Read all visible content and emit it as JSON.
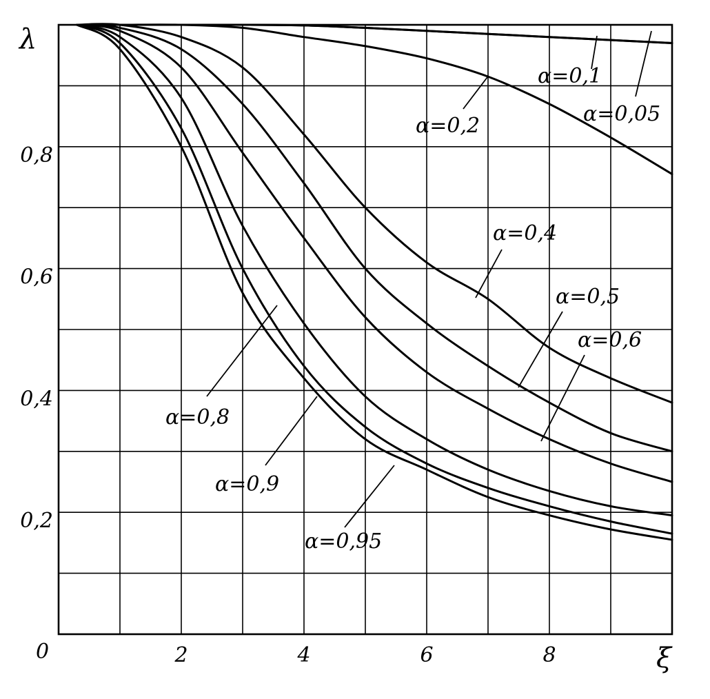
{
  "chart_data": {
    "type": "line",
    "xlabel": "ξ",
    "ylabel": "λ",
    "xlim": [
      0,
      10
    ],
    "ylim": [
      0,
      1
    ],
    "grid": true,
    "x_tick_step": 1,
    "y_tick_step": 0.1,
    "x_tick_labels": [
      {
        "value": 2,
        "label": "2"
      },
      {
        "value": 4,
        "label": "4"
      },
      {
        "value": 6,
        "label": "6"
      },
      {
        "value": 8,
        "label": "8"
      }
    ],
    "y_tick_labels": [
      {
        "value": 0.2,
        "label": "0,2"
      },
      {
        "value": 0.4,
        "label": "0,4"
      },
      {
        "value": 0.6,
        "label": "0,6"
      },
      {
        "value": 0.8,
        "label": "0,8"
      }
    ],
    "origin_label": "0",
    "series": [
      {
        "name": "α=0,05",
        "x": [
          0.3,
          1,
          2,
          3,
          4,
          5,
          6,
          7,
          8,
          9,
          10
        ],
        "y": [
          1,
          1,
          1,
          1,
          0.999,
          0.995,
          0.99,
          0.985,
          0.98,
          0.975,
          0.97
        ]
      },
      {
        "name": "α=0,1",
        "x": [
          0.3,
          1,
          2,
          3,
          4,
          5,
          6,
          7,
          8,
          9,
          10
        ],
        "y": [
          1,
          1,
          1,
          1,
          0.999,
          0.995,
          0.99,
          0.985,
          0.98,
          0.975,
          0.97
        ]
      },
      {
        "name": "α=0,2",
        "x": [
          0.3,
          1,
          2,
          3,
          4,
          5,
          6,
          7,
          8,
          9,
          10
        ],
        "y": [
          1,
          1,
          1,
          0.995,
          0.98,
          0.965,
          0.945,
          0.915,
          0.87,
          0.815,
          0.755
        ]
      },
      {
        "name": "α=0,4",
        "x": [
          0.3,
          1,
          2,
          3,
          4,
          5,
          6,
          7,
          8,
          9,
          10
        ],
        "y": [
          1,
          1,
          0.98,
          0.93,
          0.82,
          0.7,
          0.61,
          0.55,
          0.47,
          0.42,
          0.38
        ]
      },
      {
        "name": "α=0,5",
        "x": [
          0.3,
          1,
          2,
          3,
          4,
          5,
          6,
          7,
          8,
          9,
          10
        ],
        "y": [
          1,
          0.995,
          0.96,
          0.87,
          0.74,
          0.6,
          0.51,
          0.44,
          0.38,
          0.33,
          0.3
        ]
      },
      {
        "name": "α=0,6",
        "x": [
          0.3,
          1,
          2,
          3,
          4,
          5,
          6,
          7,
          8,
          9,
          10
        ],
        "y": [
          1,
          0.99,
          0.93,
          0.79,
          0.65,
          0.52,
          0.43,
          0.37,
          0.32,
          0.28,
          0.25
        ]
      },
      {
        "name": "α=0,8",
        "x": [
          0.3,
          1,
          2,
          3,
          4,
          5,
          6,
          7,
          8,
          9,
          10
        ],
        "y": [
          1,
          0.98,
          0.88,
          0.67,
          0.51,
          0.39,
          0.32,
          0.27,
          0.235,
          0.21,
          0.195
        ]
      },
      {
        "name": "α=0,9",
        "x": [
          0.3,
          1,
          2,
          3,
          4,
          5,
          6,
          7,
          8,
          9,
          10
        ],
        "y": [
          1,
          0.97,
          0.83,
          0.6,
          0.44,
          0.34,
          0.28,
          0.24,
          0.21,
          0.185,
          0.165
        ]
      },
      {
        "name": "α=0,95",
        "x": [
          0.3,
          1,
          2,
          3,
          4,
          5,
          6,
          7,
          8,
          9,
          10
        ],
        "y": [
          1,
          0.96,
          0.8,
          0.56,
          0.42,
          0.32,
          0.27,
          0.225,
          0.195,
          0.172,
          0.155
        ]
      }
    ],
    "annotations": [
      {
        "text": "α=0,1",
        "series": "α=0,1"
      },
      {
        "text": "α=0,05",
        "series": "α=0,05"
      },
      {
        "text": "α=0,2",
        "series": "α=0,2"
      },
      {
        "text": "α=0,4",
        "series": "α=0,4"
      },
      {
        "text": "α=0,5",
        "series": "α=0,5"
      },
      {
        "text": "α=0,6",
        "series": "α=0,6"
      },
      {
        "text": "α=0,8",
        "series": "α=0,8"
      },
      {
        "text": "α=0,9",
        "series": "α=0,9"
      },
      {
        "text": "α=0,95",
        "series": "α=0,95"
      }
    ]
  }
}
